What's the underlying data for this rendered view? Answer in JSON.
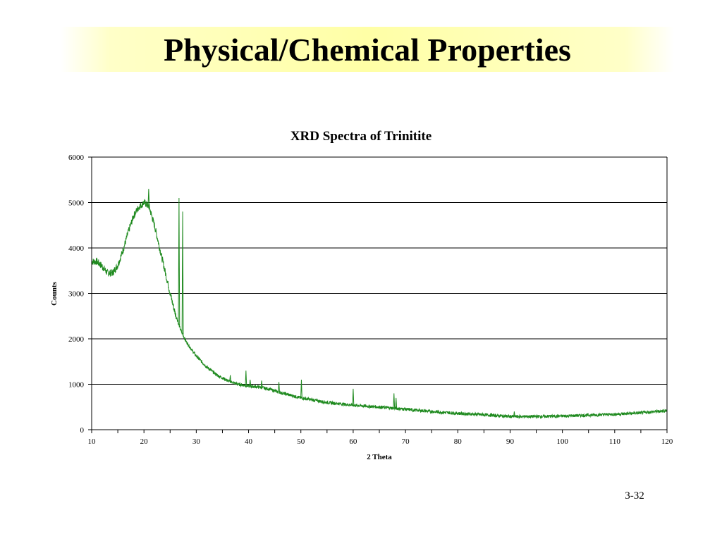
{
  "slide": {
    "title": "Physical/Chemical Properties",
    "page_number": "3-32",
    "title_band_color": "#ffffa6"
  },
  "chart_data": {
    "type": "line",
    "title": "XRD Spectra of Trinitite",
    "xlabel": "2 Theta",
    "ylabel": "Counts",
    "xlim": [
      10,
      120
    ],
    "ylim": [
      0,
      6000
    ],
    "xticks": [
      10,
      20,
      30,
      40,
      50,
      60,
      70,
      80,
      90,
      100,
      110,
      120
    ],
    "yticks": [
      0,
      1000,
      2000,
      3000,
      4000,
      5000,
      6000
    ],
    "grid": "horizontal",
    "legend": "none",
    "series_color": "#1f8a1f",
    "x": [
      10,
      11,
      12,
      13,
      14,
      15,
      16,
      17,
      18,
      19,
      20,
      20.5,
      21,
      22,
      23,
      24,
      25,
      26,
      27,
      28,
      29,
      30,
      32,
      34,
      36,
      38,
      40,
      42,
      44,
      46,
      48,
      50,
      55,
      60,
      65,
      70,
      75,
      80,
      85,
      90,
      95,
      100,
      105,
      110,
      115,
      120
    ],
    "y": [
      3700,
      3700,
      3600,
      3450,
      3450,
      3620,
      3950,
      4350,
      4700,
      4900,
      5000,
      4960,
      4900,
      4500,
      4000,
      3500,
      3000,
      2550,
      2200,
      1950,
      1780,
      1620,
      1380,
      1200,
      1080,
      1000,
      960,
      940,
      890,
      820,
      760,
      700,
      600,
      540,
      500,
      450,
      400,
      360,
      330,
      290,
      290,
      300,
      320,
      340,
      370,
      420
    ],
    "peaks": [
      {
        "x": 20.9,
        "y": 5300
      },
      {
        "x": 26.7,
        "y": 5100
      },
      {
        "x": 27.4,
        "y": 4800
      },
      {
        "x": 36.5,
        "y": 1200
      },
      {
        "x": 39.5,
        "y": 1300
      },
      {
        "x": 40.3,
        "y": 1100
      },
      {
        "x": 42.5,
        "y": 1080
      },
      {
        "x": 45.8,
        "y": 1050
      },
      {
        "x": 50.1,
        "y": 1100
      },
      {
        "x": 60.0,
        "y": 900
      },
      {
        "x": 67.8,
        "y": 800
      },
      {
        "x": 68.2,
        "y": 700
      },
      {
        "x": 90.8,
        "y": 400
      }
    ]
  }
}
